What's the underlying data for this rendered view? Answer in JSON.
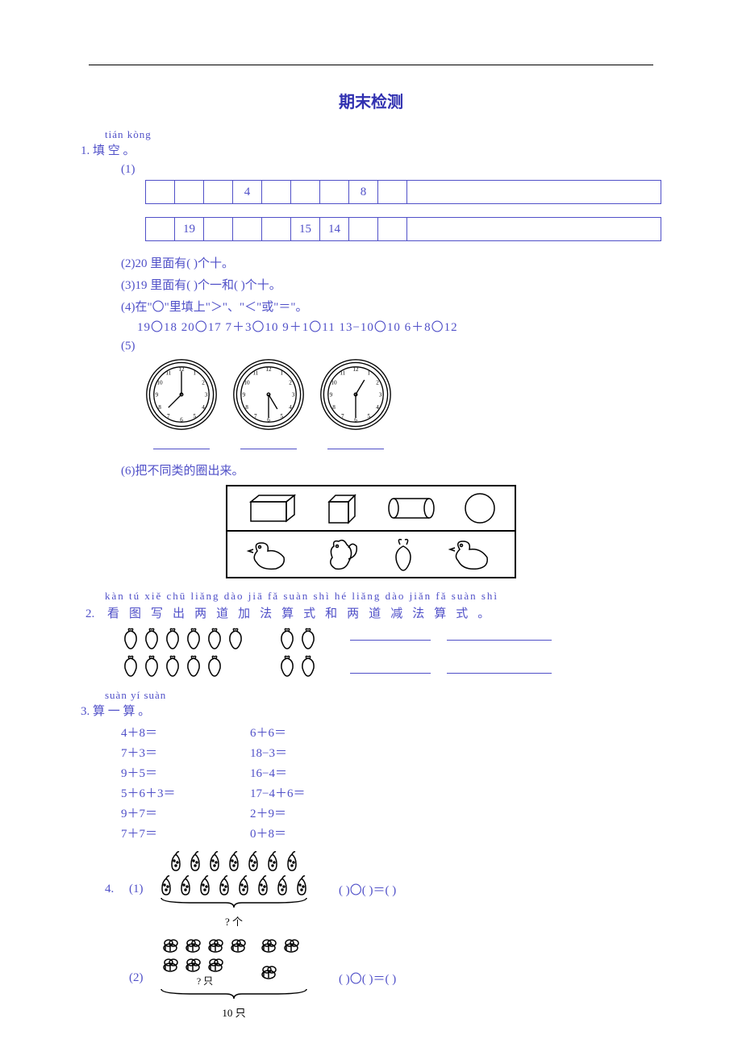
{
  "title": "期末检测",
  "q1": {
    "pinyin": "tián kòng",
    "label": "1.  填    空 。",
    "sub1_label": "(1)",
    "row1": [
      "",
      "",
      "",
      "4",
      "",
      "",
      "",
      "8",
      "",
      ""
    ],
    "row2": [
      "",
      "19",
      "",
      "",
      "",
      "15",
      "14",
      "",
      "",
      ""
    ],
    "sub2": "(2)20 里面有(    )个十。",
    "sub3": "(3)19 里面有(    )个一和(    )个十。",
    "sub4": "(4)在\"〇\"里填上\"＞\"、\"＜\"或\"＝\"。",
    "compare": "19〇18     20〇17     7＋3〇10     9＋1〇11     13−10〇10     6＋8〇12",
    "sub5": "(5)",
    "clock1": {
      "hour": 8,
      "minute": 0
    },
    "clock2": {
      "hour": 5,
      "minute": 30
    },
    "clock3": {
      "hour": 1,
      "minute": 30
    },
    "sub6": "(6)把不同类的圈出来。"
  },
  "q2": {
    "pinyin": "kàn tú xiě chū  liǎng  dào  jiā  fǎ  suàn  shì  hé  liǎng  dào  jiǎn  fǎ  suàn  shì",
    "label": "2.",
    "hanzi": [
      "看",
      "图",
      "写",
      "出",
      "两",
      "道",
      "加",
      "法",
      "算",
      "式",
      "和",
      "两",
      "道",
      "减",
      "法",
      "算",
      "式",
      "。"
    ]
  },
  "q3": {
    "pinyin": "suàn yí suàn",
    "label": "3.  算  一  算 。",
    "rows": [
      [
        "4＋8＝",
        "6＋6＝"
      ],
      [
        "7＋3＝",
        "18−3＝"
      ],
      [
        "9＋5＝",
        "16−4＝"
      ],
      [
        "5＋6＋3＝",
        "17−4＋6＝"
      ],
      [
        "9＋7＝",
        "2＋9＝"
      ],
      [
        "7＋7＝",
        "0＋8＝"
      ]
    ]
  },
  "q4": {
    "label": "4.",
    "sub1": "(1)",
    "sub1_caption": "? 个",
    "sub1_eq": "(    )〇(    )＝(    )",
    "sub2": "(2)",
    "sub2_inner": "? 只",
    "sub2_caption": "10 只",
    "sub2_eq": "(    )〇(    )＝(    )"
  }
}
